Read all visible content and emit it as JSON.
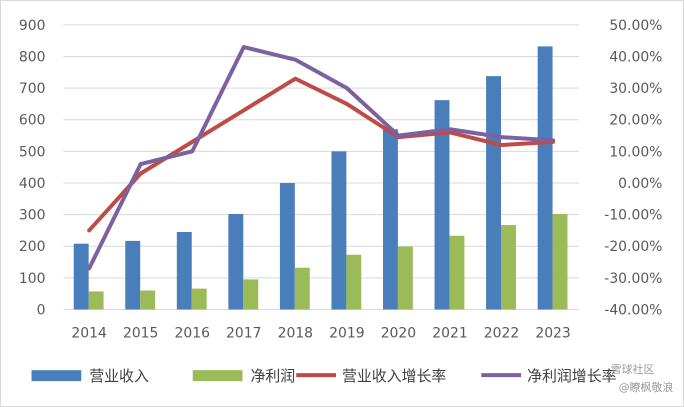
{
  "chart_data": {
    "type": "bar+line",
    "categories": [
      "2014",
      "2015",
      "2016",
      "2017",
      "2018",
      "2019",
      "2020",
      "2021",
      "2022",
      "2023"
    ],
    "y_left": {
      "min": 0,
      "max": 900,
      "step": 100,
      "ticks": [
        "0",
        "100",
        "200",
        "300",
        "400",
        "500",
        "600",
        "700",
        "800",
        "900"
      ]
    },
    "y_right": {
      "min": -40,
      "max": 50,
      "step": 10,
      "ticks": [
        "-40.00%",
        "-30.00%",
        "-20.00%",
        "-10.00%",
        "0.00%",
        "10.00%",
        "20.00%",
        "30.00%",
        "40.00%",
        "50.00%"
      ]
    },
    "bar_series": [
      {
        "name": "营业收入",
        "color": "#4a7ebb",
        "values": [
          208,
          217,
          245,
          302,
          400,
          500,
          570,
          662,
          738,
          832
        ]
      },
      {
        "name": "净利润",
        "color": "#9bbb59",
        "values": [
          57,
          60,
          66,
          95,
          132,
          173,
          199,
          233,
          267,
          302
        ]
      }
    ],
    "line_series": [
      {
        "name": "营业收入增长率",
        "color": "#be4b48",
        "values": [
          -15,
          3,
          13,
          23,
          33,
          25,
          14.5,
          16,
          12,
          13
        ]
      },
      {
        "name": "净利润增长率",
        "color": "#7d60a0",
        "values": [
          -27,
          6,
          10,
          43,
          39,
          30,
          15,
          17,
          14.5,
          13.5
        ]
      }
    ],
    "legend_position": "bottom",
    "grid": "horizontal"
  },
  "watermark": {
    "line1": "雪球社区",
    "line2": "@瞭枫敬浪"
  }
}
